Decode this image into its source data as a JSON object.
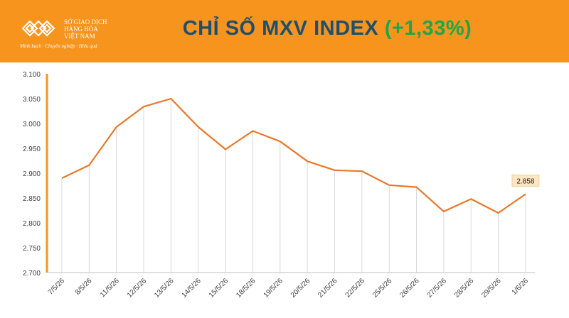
{
  "brand": {
    "name_lines": "SỞ GIAO DỊCH\nHÀNG HÓA\nVIỆT NAM",
    "tagline": "Minh bạch · Chuyên nghiệp · Hiệu quả",
    "colors": {
      "header_bg": "#f7941d",
      "title": "#1f4f6e",
      "change": "#1fa64a",
      "line": "#e8782a"
    }
  },
  "header": {
    "title": "CHỈ SỐ MXV INDEX",
    "change": "(+1,33%)"
  },
  "chart_data": {
    "type": "line",
    "title": "",
    "xlabel": "",
    "ylabel": "",
    "categories": [
      "7/5/26",
      "8/5/26",
      "11/5/26",
      "12/5/26",
      "13/5/26",
      "14/5/26",
      "15/5/26",
      "18/5/26",
      "19/5/26",
      "20/5/26",
      "21/5/26",
      "22/5/26",
      "25/5/26",
      "26/5/26",
      "27/5/26",
      "28/5/26",
      "29/5/26",
      "1/6/26"
    ],
    "values": [
      2890,
      2916,
      2993,
      3034,
      3050,
      2993,
      2948,
      2985,
      2964,
      2924,
      2906,
      2904,
      2876,
      2872,
      2823,
      2848,
      2820,
      2858
    ],
    "ylim": [
      2700,
      3100
    ],
    "yticks": [
      2700,
      2750,
      2800,
      2850,
      2900,
      2950,
      3000,
      3050,
      3100
    ],
    "ytick_labels": [
      "2.700",
      "2.750",
      "2.800",
      "2.850",
      "2.900",
      "2.950",
      "3.000",
      "3.050",
      "3.100"
    ],
    "data_labels": [
      {
        "index": 17,
        "text": "2.858"
      }
    ],
    "vertical_drop_lines": true,
    "grid": false,
    "legend": "none"
  }
}
